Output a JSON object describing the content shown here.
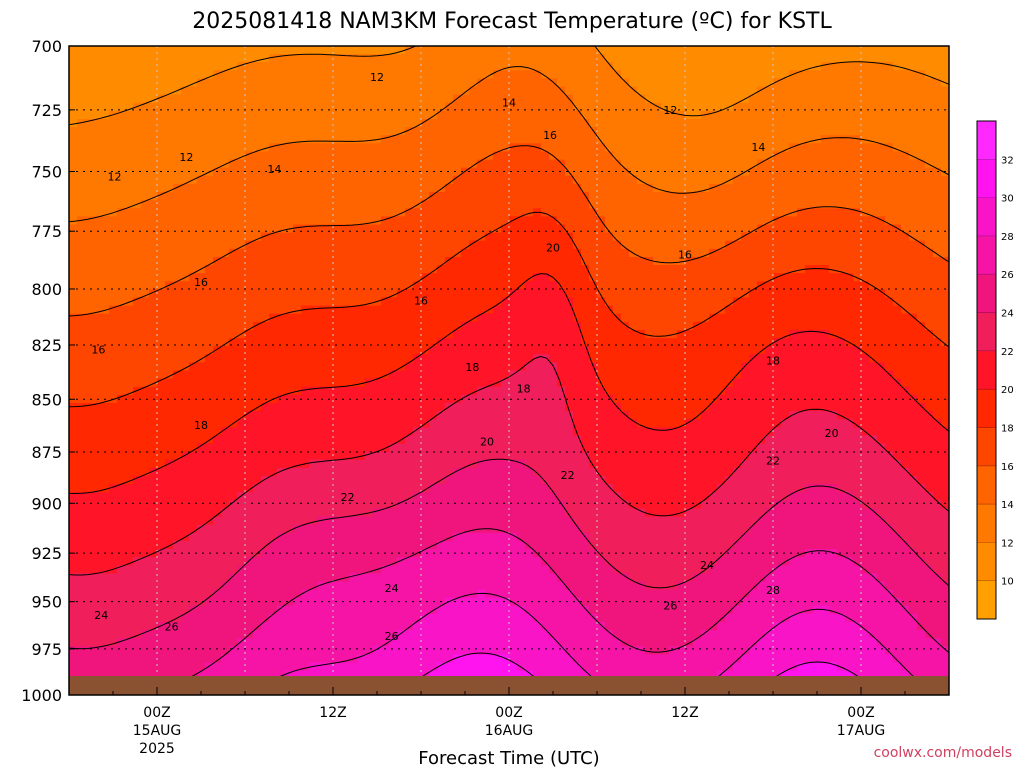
{
  "chart_data": {
    "type": "heatmap",
    "title": "2025081418 NAM3KM Forecast Temperature (ºC) for KSTL",
    "xlabel": "Forecast Time (UTC)",
    "ylabel": "",
    "y_scale": "log",
    "ylim": [
      1000,
      700
    ],
    "y_ticks": [
      "700",
      "725",
      "750",
      "775",
      "800",
      "825",
      "850",
      "875",
      "900",
      "925",
      "950",
      "975",
      "1000"
    ],
    "x_ticks": [
      {
        "label": "00Z",
        "sub1": "15AUG",
        "sub2": "2025"
      },
      {
        "label": "12Z",
        "sub1": "",
        "sub2": ""
      },
      {
        "label": "00Z",
        "sub1": "16AUG",
        "sub2": ""
      },
      {
        "label": "12Z",
        "sub1": "",
        "sub2": ""
      },
      {
        "label": "00Z",
        "sub1": "17AUG",
        "sub2": ""
      }
    ],
    "x_hours": [
      0,
      12,
      24,
      36,
      48
    ],
    "x_range": [
      -6,
      54
    ],
    "grid": true,
    "colorbar": {
      "labels": [
        "10",
        "12",
        "14",
        "16",
        "18",
        "20",
        "22",
        "24",
        "26",
        "28",
        "30",
        "32"
      ],
      "bands": [
        {
          "from": 8,
          "to": 10,
          "color": "#FFA000"
        },
        {
          "from": 10,
          "to": 12,
          "color": "#FF8C00"
        },
        {
          "from": 12,
          "to": 14,
          "color": "#FF7800"
        },
        {
          "from": 14,
          "to": 16,
          "color": "#FF6400"
        },
        {
          "from": 16,
          "to": 18,
          "color": "#FF4600"
        },
        {
          "from": 18,
          "to": 20,
          "color": "#FF2800"
        },
        {
          "from": 20,
          "to": 22,
          "color": "#FF1428"
        },
        {
          "from": 22,
          "to": 24,
          "color": "#F01E5A"
        },
        {
          "from": 24,
          "to": 26,
          "color": "#F0147D"
        },
        {
          "from": 26,
          "to": 28,
          "color": "#F514A5"
        },
        {
          "from": 28,
          "to": 30,
          "color": "#FA14C8"
        },
        {
          "from": 30,
          "to": 32,
          "color": "#FF14F0"
        },
        {
          "from": 32,
          "to": 34,
          "color": "#FF28FF"
        }
      ]
    },
    "contour_labels": [
      {
        "t": 12,
        "hour": 15.0,
        "p": 712
      },
      {
        "t": 14,
        "hour": 24.0,
        "p": 722
      },
      {
        "t": 16,
        "hour": 26.8,
        "p": 735
      },
      {
        "t": 12,
        "hour": 35.0,
        "p": 725
      },
      {
        "t": 12,
        "hour": 2.0,
        "p": 744
      },
      {
        "t": 12,
        "hour": -2.9,
        "p": 752
      },
      {
        "t": 14,
        "hour": 8.0,
        "p": 749
      },
      {
        "t": 14,
        "hour": 41.0,
        "p": 740
      },
      {
        "t": 16,
        "hour": 36.0,
        "p": 785
      },
      {
        "t": 20,
        "hour": 27.0,
        "p": 782
      },
      {
        "t": 16,
        "hour": 3.0,
        "p": 797
      },
      {
        "t": 16,
        "hour": 18.0,
        "p": 805
      },
      {
        "t": 16,
        "hour": -4.0,
        "p": 827
      },
      {
        "t": 18,
        "hour": 21.5,
        "p": 835
      },
      {
        "t": 18,
        "hour": 25.0,
        "p": 845
      },
      {
        "t": 18,
        "hour": 42.0,
        "p": 832
      },
      {
        "t": 18,
        "hour": 3.0,
        "p": 862
      },
      {
        "t": 20,
        "hour": 22.5,
        "p": 870
      },
      {
        "t": 20,
        "hour": 46.0,
        "p": 866
      },
      {
        "t": 22,
        "hour": 13.0,
        "p": 897
      },
      {
        "t": 22,
        "hour": 28.0,
        "p": 886
      },
      {
        "t": 22,
        "hour": 42.0,
        "p": 879
      },
      {
        "t": 24,
        "hour": 37.5,
        "p": 931
      },
      {
        "t": 24,
        "hour": 16.0,
        "p": 943
      },
      {
        "t": 24,
        "hour": -3.8,
        "p": 957
      },
      {
        "t": 26,
        "hour": 1.0,
        "p": 963
      },
      {
        "t": 26,
        "hour": 35.0,
        "p": 952
      },
      {
        "t": 26,
        "hour": 16.0,
        "p": 968
      },
      {
        "t": 28,
        "hour": 42.0,
        "p": 944
      }
    ],
    "surface_color": "#8B5232"
  },
  "credit": "coolwx.com/models"
}
